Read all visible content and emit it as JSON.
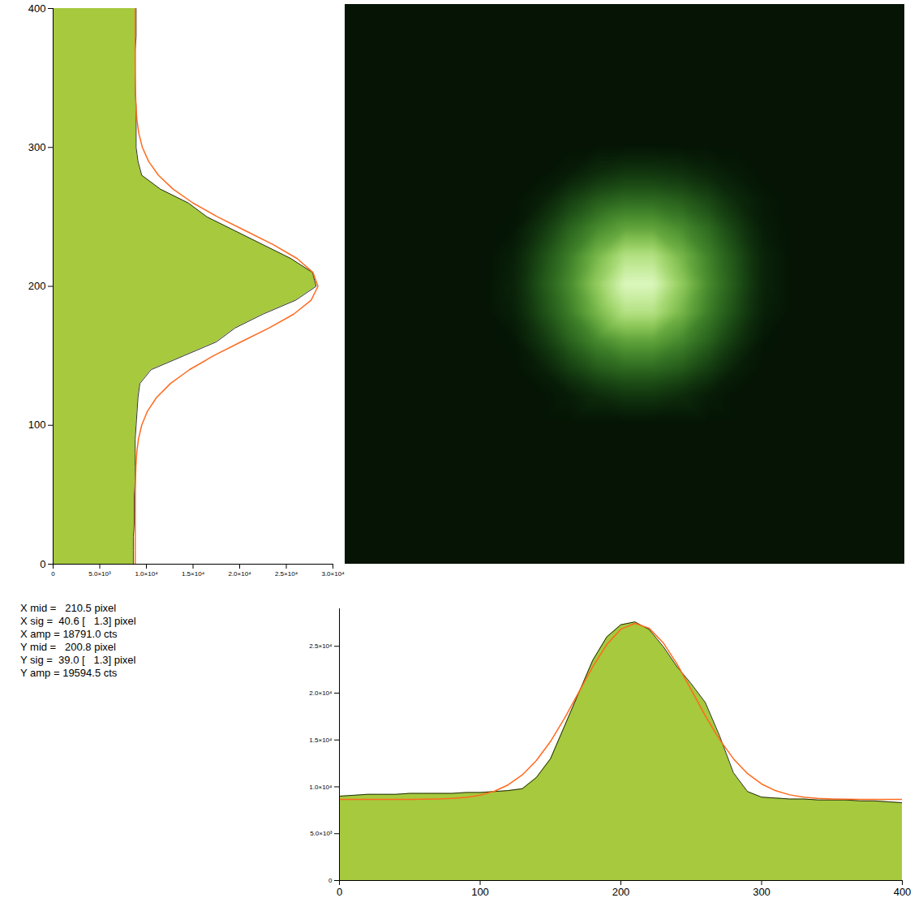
{
  "chart_data": [
    {
      "type": "area",
      "orientation": "horizontal",
      "y": [
        0,
        10,
        20,
        30,
        40,
        50,
        60,
        70,
        80,
        90,
        100,
        110,
        120,
        130,
        140,
        150,
        160,
        170,
        180,
        190,
        200,
        210,
        220,
        230,
        240,
        250,
        260,
        270,
        280,
        290,
        300,
        310,
        320,
        330,
        340,
        350,
        360,
        370,
        380,
        390,
        400
      ],
      "series": [
        {
          "type": "area",
          "color": "#a6c93e",
          "values": [
            8600,
            8600,
            8600,
            8700,
            8700,
            8700,
            8800,
            8800,
            8800,
            8800,
            8900,
            9000,
            9100,
            9300,
            10500,
            14000,
            17500,
            19500,
            22500,
            26000,
            28200,
            27800,
            25500,
            22500,
            19500,
            16500,
            14500,
            11500,
            9500,
            9100,
            8900,
            8900,
            8900,
            8900,
            8800,
            8800,
            8800,
            8800,
            8900,
            8900,
            8900
          ]
        },
        {
          "type": "line",
          "color": "#ff6a1e",
          "values": [
            8800,
            8800,
            8800,
            8800,
            8803,
            8810,
            8829,
            8871,
            8962,
            9146,
            9494,
            10103,
            11092,
            12572,
            14612,
            17187,
            20137,
            23143,
            25798,
            27658,
            28394,
            27858,
            26161,
            23604,
            20625,
            17637,
            14992,
            12856,
            11288,
            10232,
            9572,
            9189,
            8982,
            8881,
            8833,
            8812,
            8800,
            8800,
            8800,
            8800,
            8800
          ]
        }
      ],
      "xlim": [
        0,
        30000
      ],
      "xticks": [
        0,
        {
          "value": 5000,
          "label": "5.0×10³"
        },
        {
          "value": 10000,
          "label": "1.0×10⁴"
        },
        {
          "value": 15000,
          "label": "1.5×10⁴"
        },
        {
          "value": 20000,
          "label": "2.0×10⁴"
        },
        {
          "value": 25000,
          "label": "2.5×10⁴"
        },
        {
          "value": 30000,
          "label": "3.0×10⁴"
        }
      ],
      "ylim": [
        0,
        400
      ],
      "yticks": [
        0,
        100,
        200,
        300,
        400
      ]
    },
    {
      "type": "heatmap",
      "x": [
        0,
        20,
        40,
        60,
        80,
        100,
        120,
        140,
        160,
        180,
        200,
        220,
        240,
        260,
        280,
        300,
        320,
        340,
        360,
        380,
        400
      ],
      "y": [
        0,
        20,
        40,
        60,
        80,
        100,
        120,
        140,
        160,
        180,
        200,
        220,
        240,
        260,
        280,
        300,
        320,
        340,
        360,
        380,
        400
      ],
      "values": [
        [
          22,
          22,
          22,
          22,
          22,
          22,
          22,
          22,
          22,
          22,
          22,
          22,
          22,
          22,
          22,
          22,
          22,
          22,
          22,
          22,
          22
        ],
        [
          22,
          22,
          22,
          22,
          22,
          22,
          22,
          22,
          22,
          22,
          22,
          22,
          22,
          22,
          22,
          22,
          22,
          22,
          22,
          22,
          22
        ],
        [
          22,
          22,
          22,
          22,
          22,
          22,
          22,
          22,
          22,
          22,
          22,
          22,
          22,
          22,
          22,
          22,
          22,
          22,
          22,
          22,
          22
        ],
        [
          22,
          22,
          22,
          22,
          22,
          22,
          22,
          22,
          22,
          22,
          22,
          22,
          22,
          22,
          22,
          22,
          22,
          22,
          22,
          22,
          22
        ],
        [
          22,
          22,
          22,
          22,
          22,
          22,
          22,
          22,
          22,
          22,
          22,
          22,
          22,
          22,
          22,
          22,
          22,
          22,
          22,
          22,
          22
        ],
        [
          22,
          22,
          22,
          22,
          22,
          22,
          22,
          22,
          22,
          22,
          22,
          22,
          22,
          22,
          22,
          22,
          22,
          22,
          22,
          22,
          22
        ],
        [
          22,
          22,
          22,
          22,
          22,
          22,
          22,
          22,
          32,
          50,
          60,
          60,
          50,
          32,
          22,
          22,
          22,
          22,
          22,
          22,
          22
        ],
        [
          22,
          22,
          22,
          22,
          22,
          22,
          22,
          36,
          68,
          90,
          100,
          100,
          90,
          68,
          36,
          22,
          22,
          22,
          22,
          22,
          22
        ],
        [
          22,
          22,
          22,
          22,
          22,
          22,
          25,
          60,
          95,
          120,
          137,
          137,
          120,
          95,
          60,
          25,
          22,
          22,
          22,
          22,
          22
        ],
        [
          22,
          22,
          22,
          22,
          22,
          22,
          36,
          78,
          112,
          150,
          185,
          185,
          150,
          112,
          78,
          36,
          22,
          22,
          22,
          22,
          22
        ],
        [
          22,
          22,
          22,
          22,
          22,
          22,
          40,
          85,
          120,
          165,
          210,
          210,
          165,
          120,
          85,
          40,
          22,
          22,
          22,
          22,
          22
        ],
        [
          22,
          22,
          22,
          22,
          22,
          22,
          36,
          78,
          112,
          150,
          185,
          185,
          150,
          115,
          82,
          40,
          22,
          22,
          22,
          22,
          22
        ],
        [
          22,
          22,
          22,
          22,
          22,
          22,
          25,
          60,
          95,
          120,
          137,
          137,
          122,
          100,
          68,
          32,
          22,
          22,
          22,
          22,
          22
        ],
        [
          22,
          22,
          22,
          22,
          22,
          22,
          22,
          36,
          68,
          90,
          100,
          100,
          92,
          75,
          48,
          28,
          22,
          22,
          22,
          22,
          22
        ],
        [
          22,
          22,
          22,
          22,
          22,
          22,
          22,
          22,
          32,
          50,
          60,
          60,
          55,
          42,
          30,
          22,
          22,
          22,
          22,
          22,
          22
        ],
        [
          22,
          22,
          22,
          22,
          22,
          22,
          22,
          22,
          22,
          22,
          22,
          22,
          22,
          22,
          22,
          22,
          22,
          22,
          22,
          22,
          22
        ],
        [
          22,
          22,
          22,
          22,
          22,
          22,
          22,
          22,
          22,
          22,
          22,
          22,
          22,
          22,
          22,
          22,
          22,
          22,
          22,
          22,
          22
        ],
        [
          22,
          22,
          22,
          22,
          22,
          22,
          22,
          22,
          22,
          22,
          22,
          22,
          22,
          22,
          22,
          22,
          22,
          22,
          22,
          22,
          22
        ],
        [
          22,
          22,
          22,
          22,
          22,
          22,
          22,
          22,
          22,
          22,
          22,
          22,
          22,
          22,
          22,
          22,
          22,
          22,
          22,
          22,
          22
        ],
        [
          22,
          22,
          22,
          22,
          22,
          22,
          22,
          22,
          22,
          22,
          22,
          22,
          22,
          22,
          22,
          22,
          22,
          22,
          22,
          22,
          22
        ],
        [
          22,
          22,
          22,
          22,
          22,
          22,
          22,
          22,
          22,
          22,
          22,
          22,
          22,
          22,
          22,
          22,
          22,
          22,
          22,
          22,
          22
        ]
      ],
      "zlim": [
        20,
        220
      ],
      "xlim": [
        0,
        400
      ],
      "ylim": [
        0,
        400
      ],
      "tick_labels": false
    },
    {
      "type": "area",
      "x": [
        0,
        10,
        20,
        30,
        40,
        50,
        60,
        70,
        80,
        90,
        100,
        110,
        120,
        130,
        140,
        150,
        160,
        170,
        180,
        190,
        200,
        210,
        220,
        230,
        240,
        250,
        260,
        270,
        280,
        290,
        300,
        310,
        320,
        330,
        340,
        350,
        360,
        370,
        380,
        390,
        400
      ],
      "series": [
        {
          "type": "area",
          "color": "#a6c93e",
          "values": [
            9000,
            9100,
            9200,
            9200,
            9200,
            9300,
            9300,
            9300,
            9300,
            9400,
            9400,
            9500,
            9600,
            9800,
            11000,
            13000,
            16500,
            20000,
            23500,
            26000,
            27300,
            27600,
            26800,
            25000,
            22800,
            21000,
            19000,
            15500,
            11500,
            9500,
            8900,
            8800,
            8700,
            8700,
            8600,
            8600,
            8600,
            8500,
            8500,
            8400,
            8300
          ]
        },
        {
          "type": "line",
          "color": "#ff6a1e",
          "values": [
            8650,
            8650,
            8650,
            8650,
            8650,
            8655,
            8669,
            8697,
            8757,
            8881,
            9112,
            9527,
            10217,
            11280,
            12811,
            14843,
            17321,
            20075,
            22818,
            25186,
            26821,
            27441,
            26933,
            25393,
            23081,
            20357,
            17589,
            15071,
            12991,
            11412,
            10304,
            9582,
            9144,
            8894,
            8760,
            8701,
            8672,
            8660,
            8654,
            8651,
            8650
          ]
        }
      ],
      "xlim": [
        0,
        400
      ],
      "xticks": [
        0,
        100,
        200,
        300,
        400
      ],
      "ylim": [
        0,
        29000
      ],
      "yticks": [
        0,
        {
          "value": 5000,
          "label": "5.0×10³"
        },
        {
          "value": 10000,
          "label": "1.0×10⁴"
        },
        {
          "value": 15000,
          "label": "1.5×10⁴"
        },
        {
          "value": 20000,
          "label": "2.0×10⁴"
        },
        {
          "value": 25000,
          "label": "2.5×10⁴"
        }
      ],
      "annotations": [
        "X mid =   210.5 pixel",
        "X sig =  40.6 [   1.3] pixel",
        "X amp = 18791.0 cts",
        "Y mid =   200.8 pixel",
        "Y sig =  39.0 [   1.3] pixel",
        "Y amp = 19594.5 cts"
      ]
    }
  ]
}
